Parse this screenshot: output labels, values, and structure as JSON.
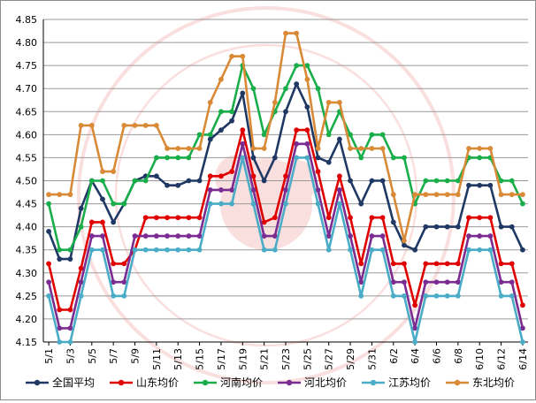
{
  "chart_data": {
    "type": "line",
    "title": "",
    "xlabel": "",
    "ylabel": "",
    "ylim": [
      4.15,
      4.85
    ],
    "yticks": [
      "4.15",
      "4.20",
      "4.25",
      "4.30",
      "4.35",
      "4.40",
      "4.45",
      "4.50",
      "4.55",
      "4.60",
      "4.65",
      "4.70",
      "4.75",
      "4.80",
      "4.85"
    ],
    "grid": true,
    "legend_position": "bottom",
    "x": [
      "5/1",
      "5/2",
      "5/3",
      "5/4",
      "5/5",
      "5/6",
      "5/7",
      "5/8",
      "5/9",
      "5/10",
      "5/11",
      "5/12",
      "5/13",
      "5/14",
      "5/15",
      "5/16",
      "5/17",
      "5/18",
      "5/19",
      "5/20",
      "5/21",
      "5/22",
      "5/23",
      "5/24",
      "5/25",
      "5/26",
      "5/27",
      "5/28",
      "5/29",
      "5/30",
      "5/31",
      "6/1",
      "6/2",
      "6/3",
      "6/4",
      "6/5",
      "6/6",
      "6/7",
      "6/8",
      "6/9",
      "6/10",
      "6/11",
      "6/12",
      "6/13",
      "6/14"
    ],
    "xtick_labels": [
      "5/1",
      "5/3",
      "5/5",
      "5/7",
      "5/9",
      "5/11",
      "5/13",
      "5/15",
      "5/17",
      "5/19",
      "5/21",
      "5/23",
      "5/25",
      "5/27",
      "5/29",
      "5/31",
      "6/2",
      "6/4",
      "6/6",
      "6/8",
      "6/10",
      "6/12",
      "6/14"
    ],
    "series": [
      {
        "name": "全国平均",
        "color": "#1f3864",
        "values": [
          4.39,
          4.33,
          4.33,
          4.44,
          4.5,
          4.46,
          4.41,
          4.45,
          4.5,
          4.51,
          4.51,
          4.49,
          4.49,
          4.5,
          4.5,
          4.59,
          4.61,
          4.63,
          4.69,
          4.55,
          4.5,
          4.55,
          4.65,
          4.71,
          4.66,
          4.55,
          4.54,
          4.59,
          4.5,
          4.45,
          4.5,
          4.5,
          4.41,
          4.36,
          4.35,
          4.4,
          4.4,
          4.4,
          4.4,
          4.49,
          4.49,
          4.49,
          4.4,
          4.4,
          4.35
        ]
      },
      {
        "name": "山东均价",
        "color": "#e00000",
        "values": [
          4.32,
          4.22,
          4.22,
          4.31,
          4.41,
          4.41,
          4.32,
          4.32,
          4.35,
          4.42,
          4.42,
          4.42,
          4.42,
          4.42,
          4.42,
          4.51,
          4.51,
          4.52,
          4.61,
          4.51,
          4.41,
          4.42,
          4.51,
          4.61,
          4.61,
          4.52,
          4.42,
          4.51,
          4.42,
          4.32,
          4.42,
          4.42,
          4.32,
          4.32,
          4.23,
          4.32,
          4.32,
          4.32,
          4.32,
          4.42,
          4.42,
          4.42,
          4.32,
          4.32,
          4.23
        ]
      },
      {
        "name": "河南均价",
        "color": "#1aae4a",
        "values": [
          4.45,
          4.35,
          4.35,
          4.4,
          4.5,
          4.5,
          4.45,
          4.45,
          4.5,
          4.5,
          4.55,
          4.55,
          4.55,
          4.55,
          4.6,
          4.6,
          4.65,
          4.65,
          4.75,
          4.7,
          4.6,
          4.65,
          4.7,
          4.75,
          4.75,
          4.7,
          4.6,
          4.65,
          4.6,
          4.55,
          4.6,
          4.6,
          4.55,
          4.55,
          4.45,
          4.5,
          4.5,
          4.5,
          4.5,
          4.55,
          4.55,
          4.55,
          4.5,
          4.5,
          4.45
        ]
      },
      {
        "name": "河北均价",
        "color": "#7b2c91",
        "values": [
          4.28,
          4.18,
          4.18,
          4.28,
          4.38,
          4.38,
          4.28,
          4.28,
          4.38,
          4.38,
          4.38,
          4.38,
          4.38,
          4.38,
          4.38,
          4.48,
          4.48,
          4.48,
          4.58,
          4.48,
          4.38,
          4.38,
          4.48,
          4.58,
          4.58,
          4.48,
          4.38,
          4.48,
          4.38,
          4.28,
          4.38,
          4.38,
          4.28,
          4.28,
          4.18,
          4.28,
          4.28,
          4.28,
          4.28,
          4.38,
          4.38,
          4.38,
          4.28,
          4.28,
          4.18
        ]
      },
      {
        "name": "江苏均价",
        "color": "#4aacc6",
        "values": [
          4.25,
          4.15,
          4.15,
          4.25,
          4.35,
          4.35,
          4.25,
          4.25,
          4.35,
          4.35,
          4.35,
          4.35,
          4.35,
          4.35,
          4.35,
          4.45,
          4.45,
          4.45,
          4.55,
          4.45,
          4.35,
          4.35,
          4.45,
          4.55,
          4.55,
          4.45,
          4.35,
          4.45,
          4.35,
          4.25,
          4.35,
          4.35,
          4.25,
          4.25,
          4.15,
          4.25,
          4.25,
          4.25,
          4.25,
          4.35,
          4.35,
          4.35,
          4.25,
          4.25,
          4.15
        ]
      },
      {
        "name": "东北均价",
        "color": "#d98a37",
        "values": [
          4.47,
          4.47,
          4.47,
          4.62,
          4.62,
          4.52,
          4.52,
          4.62,
          4.62,
          4.62,
          4.62,
          4.57,
          4.57,
          4.57,
          4.57,
          4.67,
          4.72,
          4.77,
          4.77,
          4.57,
          4.57,
          4.67,
          4.82,
          4.82,
          4.72,
          4.57,
          4.67,
          4.67,
          4.57,
          4.57,
          4.57,
          4.57,
          4.47,
          4.37,
          4.47,
          4.47,
          4.47,
          4.47,
          4.47,
          4.57,
          4.57,
          4.57,
          4.47,
          4.47,
          4.47
        ]
      }
    ]
  }
}
